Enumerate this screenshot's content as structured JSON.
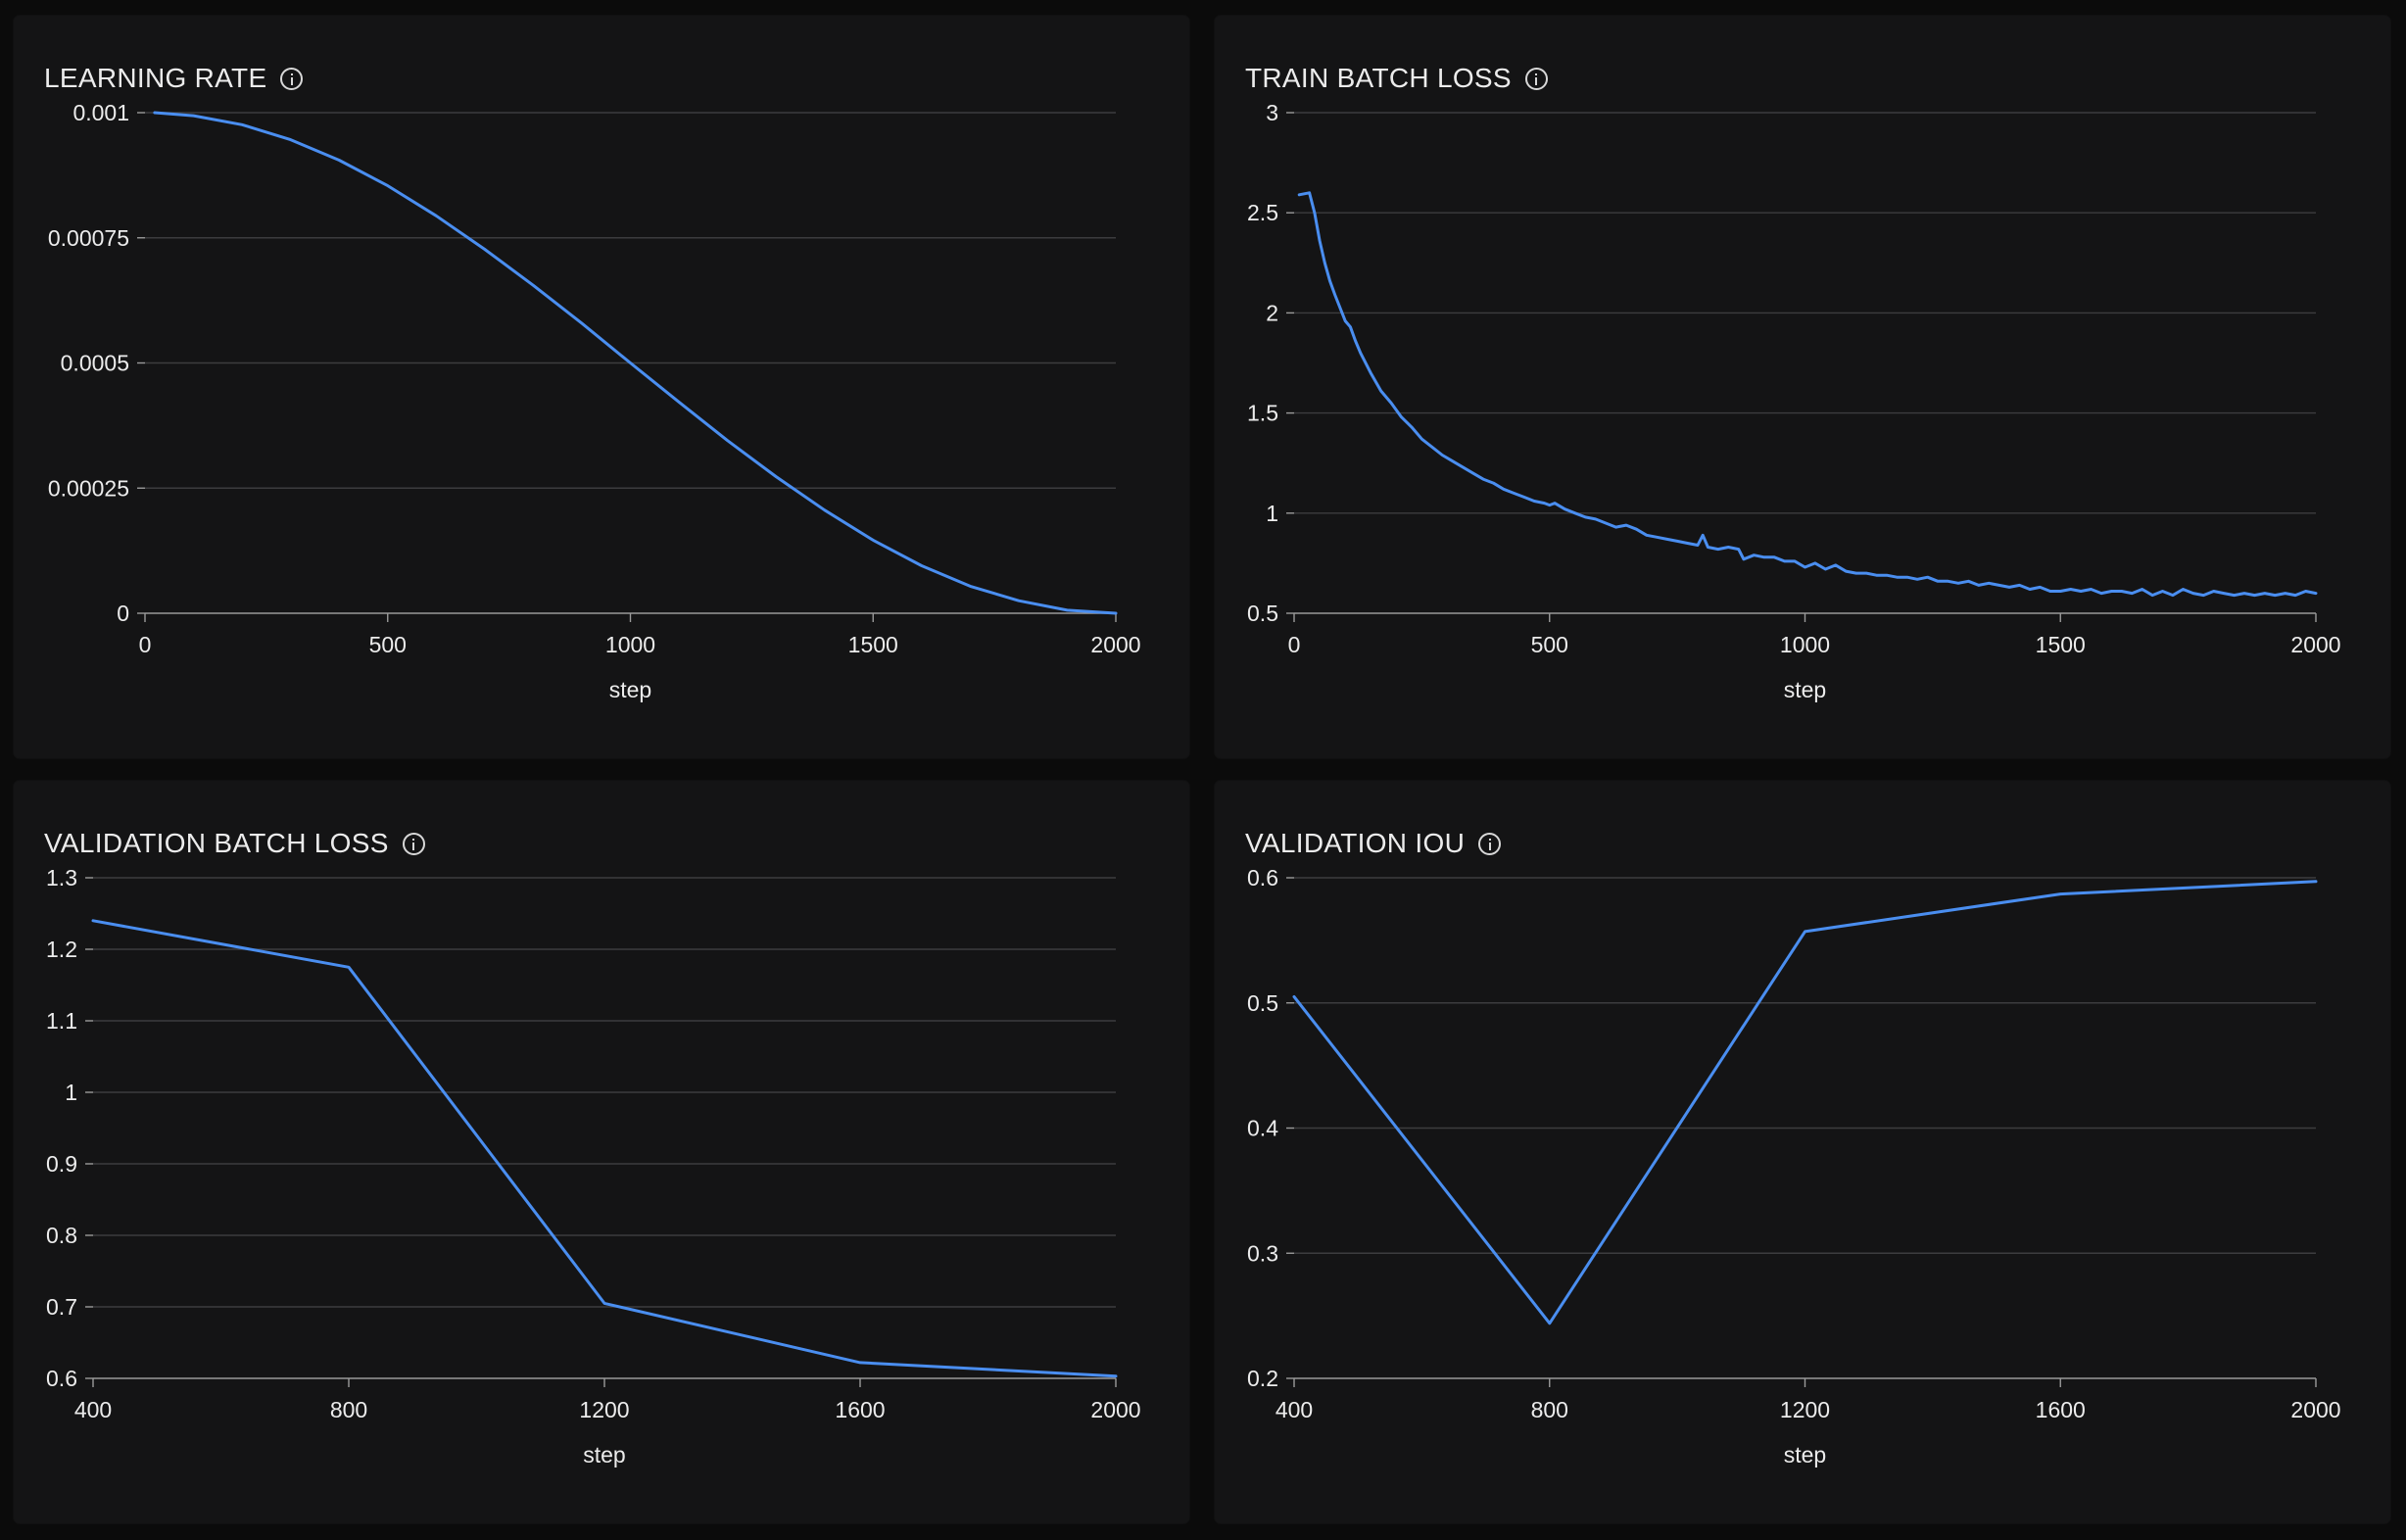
{
  "chart_data": [
    {
      "id": "lr",
      "type": "line",
      "title": "LEARNING RATE",
      "xlabel": "step",
      "ylabel": "",
      "xlim": [
        0,
        2000
      ],
      "ylim": [
        0,
        0.001
      ],
      "x_ticks": [
        0,
        500,
        1000,
        1500,
        2000
      ],
      "x_tick_labels": [
        "0",
        "500",
        "1000",
        "1500",
        "2000"
      ],
      "y_ticks": [
        0,
        0.00025,
        0.0005,
        0.00075,
        0.001
      ],
      "y_tick_labels": [
        "0",
        "0.00025",
        "0.0005",
        "0.00075",
        "0.001"
      ],
      "grid": true,
      "color": "#4a8ef0",
      "series": [
        {
          "x": [
            20,
            100,
            200,
            300,
            400,
            500,
            600,
            700,
            800,
            900,
            1000,
            1100,
            1200,
            1300,
            1400,
            1500,
            1600,
            1700,
            1800,
            1900,
            2000
          ],
          "values": [
            0.001,
            0.000994,
            0.000976,
            0.000946,
            0.000905,
            0.000854,
            0.000794,
            0.000727,
            0.000655,
            0.000579,
            0.0005,
            0.000422,
            0.000345,
            0.000273,
            0.000206,
            0.000146,
            9.5e-05,
            5.4e-05,
            2.5e-05,
            6e-06,
            0.0
          ]
        }
      ]
    },
    {
      "id": "train",
      "type": "line",
      "title": "TRAIN BATCH LOSS",
      "xlabel": "step",
      "ylabel": "",
      "xlim": [
        0,
        2000
      ],
      "ylim": [
        0.5,
        3
      ],
      "x_ticks": [
        0,
        500,
        1000,
        1500,
        2000
      ],
      "x_tick_labels": [
        "0",
        "500",
        "1000",
        "1500",
        "2000"
      ],
      "y_ticks": [
        0.5,
        1,
        1.5,
        2,
        2.5,
        3
      ],
      "y_tick_labels": [
        "0.5",
        "1",
        "1.5",
        "2",
        "2.5",
        "3"
      ],
      "grid": true,
      "color": "#4a8ef0",
      "series": [
        {
          "x": [
            10,
            30,
            40,
            50,
            60,
            70,
            80,
            100,
            110,
            120,
            130,
            150,
            170,
            190,
            210,
            230,
            250,
            270,
            290,
            310,
            330,
            350,
            370,
            390,
            410,
            430,
            450,
            470,
            490,
            500,
            510,
            530,
            550,
            570,
            590,
            610,
            630,
            650,
            670,
            690,
            710,
            730,
            750,
            770,
            790,
            800,
            810,
            830,
            850,
            870,
            880,
            900,
            920,
            940,
            960,
            980,
            1000,
            1020,
            1040,
            1060,
            1080,
            1100,
            1120,
            1140,
            1160,
            1180,
            1200,
            1220,
            1240,
            1260,
            1280,
            1300,
            1320,
            1340,
            1360,
            1380,
            1400,
            1420,
            1440,
            1460,
            1480,
            1500,
            1520,
            1540,
            1560,
            1580,
            1600,
            1620,
            1640,
            1660,
            1680,
            1700,
            1720,
            1740,
            1760,
            1780,
            1800,
            1820,
            1840,
            1860,
            1880,
            1900,
            1920,
            1940,
            1960,
            1980,
            2000
          ],
          "values": [
            2.59,
            2.6,
            2.5,
            2.36,
            2.25,
            2.16,
            2.09,
            1.96,
            1.93,
            1.86,
            1.8,
            1.7,
            1.61,
            1.55,
            1.48,
            1.43,
            1.37,
            1.33,
            1.29,
            1.26,
            1.23,
            1.2,
            1.17,
            1.15,
            1.12,
            1.1,
            1.08,
            1.06,
            1.05,
            1.04,
            1.05,
            1.02,
            1.0,
            0.98,
            0.97,
            0.95,
            0.93,
            0.94,
            0.92,
            0.89,
            0.88,
            0.87,
            0.86,
            0.85,
            0.84,
            0.89,
            0.83,
            0.82,
            0.83,
            0.82,
            0.77,
            0.79,
            0.78,
            0.78,
            0.76,
            0.76,
            0.73,
            0.75,
            0.72,
            0.74,
            0.71,
            0.7,
            0.7,
            0.69,
            0.69,
            0.68,
            0.68,
            0.67,
            0.68,
            0.66,
            0.66,
            0.65,
            0.66,
            0.64,
            0.65,
            0.64,
            0.63,
            0.64,
            0.62,
            0.63,
            0.61,
            0.61,
            0.62,
            0.61,
            0.62,
            0.6,
            0.61,
            0.61,
            0.6,
            0.62,
            0.59,
            0.61,
            0.59,
            0.62,
            0.6,
            0.59,
            0.61,
            0.6,
            0.59,
            0.6,
            0.59,
            0.6,
            0.59,
            0.6,
            0.59,
            0.61,
            0.6
          ]
        }
      ]
    },
    {
      "id": "vloss",
      "type": "line",
      "title": "VALIDATION BATCH LOSS",
      "xlabel": "step",
      "ylabel": "",
      "xlim": [
        400,
        2000
      ],
      "ylim": [
        0.6,
        1.3
      ],
      "x_ticks": [
        400,
        800,
        1200,
        1600,
        2000
      ],
      "x_tick_labels": [
        "400",
        "800",
        "1200",
        "1600",
        "2000"
      ],
      "y_ticks": [
        0.6,
        0.7,
        0.8,
        0.9,
        1.0,
        1.1,
        1.2,
        1.3
      ],
      "y_tick_labels": [
        "0.6",
        "0.7",
        "0.8",
        "0.9",
        "1",
        "1.1",
        "1.2",
        "1.3"
      ],
      "grid": true,
      "color": "#4a8ef0",
      "series": [
        {
          "x": [
            400,
            800,
            1200,
            1600,
            2000
          ],
          "values": [
            1.24,
            1.175,
            0.705,
            0.622,
            0.603
          ]
        }
      ]
    },
    {
      "id": "viou",
      "type": "line",
      "title": "VALIDATION IOU",
      "xlabel": "step",
      "ylabel": "",
      "xlim": [
        400,
        2000
      ],
      "ylim": [
        0.2,
        0.6
      ],
      "x_ticks": [
        400,
        800,
        1200,
        1600,
        2000
      ],
      "x_tick_labels": [
        "400",
        "800",
        "1200",
        "1600",
        "2000"
      ],
      "y_ticks": [
        0.2,
        0.3,
        0.4,
        0.5,
        0.6
      ],
      "y_tick_labels": [
        "0.2",
        "0.3",
        "0.4",
        "0.5",
        "0.6"
      ],
      "grid": true,
      "color": "#4a8ef0",
      "series": [
        {
          "x": [
            400,
            800,
            1200,
            1600,
            2000
          ],
          "values": [
            0.505,
            0.244,
            0.557,
            0.587,
            0.597
          ]
        }
      ]
    }
  ]
}
